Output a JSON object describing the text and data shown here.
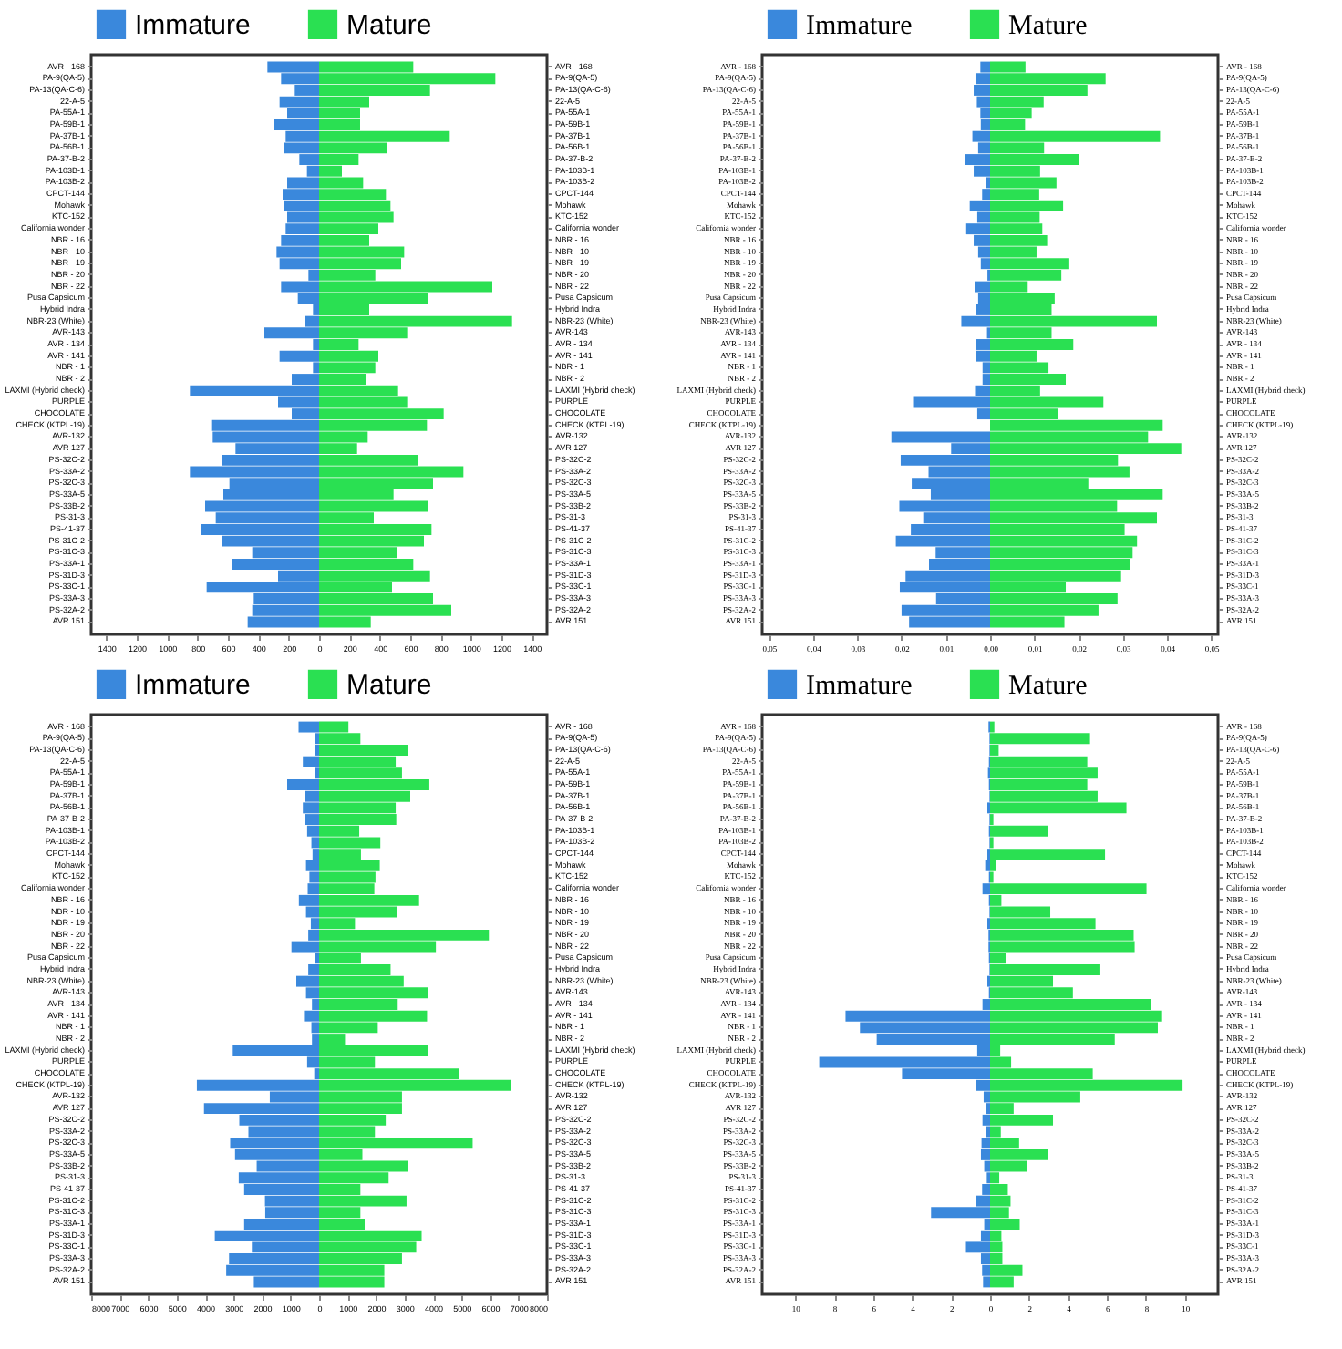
{
  "chart_data": [
    {
      "type": "bar",
      "orientation": "horizontal",
      "stacked": true,
      "legend": "top",
      "categories": [
        "AVR - 168",
        "PA-9(QA-5)",
        "PA-13(QA-C-6)",
        "22-A-5",
        "PA-55A-1",
        "PA-59B-1",
        "PA-37B-1",
        "PA-56B-1",
        "PA-37-B-2",
        "PA-103B-1",
        "PA-103B-2",
        "CPCT-144",
        "Mohawk",
        "KTC-152",
        "California wonder",
        "NBR - 16",
        "NBR - 10",
        "NBR - 19",
        "NBR - 20",
        "NBR - 22",
        "Pusa Capsicum",
        "Hybrid Indra",
        "NBR-23 (White)",
        "AVR-143",
        "AVR - 134",
        "AVR - 141",
        "NBR - 1",
        "NBR - 2",
        "LAXMI (Hybrid check)",
        "PURPLE",
        "CHOCOLATE",
        "CHECK (KTPL-19)",
        "AVR-132",
        "AVR 127",
        "PS-32C-2",
        "PS-33A-2",
        "PS-32C-3",
        "PS-33A-5",
        "PS-33B-2",
        "PS-31-3",
        "PS-41-37",
        "PS-31C-2",
        "PS-31C-3",
        "PS-33A-1",
        "PS-31D-3",
        "PS-33C-1",
        "PS-33A-3",
        "PS-32A-2",
        "AVR 151"
      ],
      "xlim": [
        -1500,
        1500
      ],
      "xticks": [
        {
          "value": -1400,
          "label": "1400"
        },
        {
          "value": -1200,
          "label": "1200"
        },
        {
          "value": -1000,
          "label": "1000"
        },
        {
          "value": -800,
          "label": "800"
        },
        {
          "value": -600,
          "label": "600"
        },
        {
          "value": -400,
          "label": "400"
        },
        {
          "value": -200,
          "label": "200"
        },
        0,
        200,
        400,
        600,
        800,
        1000,
        1200,
        1400
      ],
      "series": [
        {
          "name": "Immature",
          "color": "#3a88dc",
          "values": [
            -340,
            -250,
            -160,
            -260,
            -210,
            -300,
            -220,
            -230,
            -130,
            -80,
            -210,
            -240,
            -230,
            -210,
            -220,
            -250,
            -280,
            -260,
            -70,
            -250,
            -140,
            -40,
            -90,
            -360,
            -40,
            -260,
            -40,
            -180,
            -850,
            -270,
            -180,
            -710,
            -700,
            -550,
            -640,
            -850,
            -590,
            -630,
            -750,
            -680,
            -780,
            -640,
            -440,
            -570,
            -270,
            -740,
            -430,
            -440,
            -470
          ]
        },
        {
          "name": "Mature",
          "color": "#2ae052",
          "values": [
            620,
            1160,
            730,
            330,
            270,
            270,
            860,
            450,
            260,
            150,
            290,
            440,
            470,
            490,
            390,
            330,
            560,
            540,
            370,
            1140,
            720,
            330,
            1270,
            580,
            260,
            390,
            370,
            310,
            520,
            580,
            820,
            710,
            320,
            250,
            650,
            950,
            750,
            490,
            720,
            360,
            740,
            690,
            510,
            620,
            730,
            480,
            750,
            870,
            340
          ]
        }
      ]
    },
    {
      "type": "bar",
      "orientation": "horizontal",
      "stacked": true,
      "legend": "top",
      "categories": [
        "AVR - 168",
        "PA-9(QA-5)",
        "PA-13(QA-C-6)",
        "22-A-5",
        "PA-55A-1",
        "PA-59B-1",
        "PA-37B-1",
        "PA-56B-1",
        "PA-37-B-2",
        "PA-103B-1",
        "PA-103B-2",
        "CPCT-144",
        "Mohawk",
        "KTC-152",
        "California wonder",
        "NBR - 16",
        "NBR - 10",
        "NBR - 19",
        "NBR - 20",
        "NBR - 22",
        "Pusa Capsicum",
        "Hybrid Indra",
        "NBR-23 (White)",
        "AVR-143",
        "AVR - 134",
        "AVR - 141",
        "NBR - 1",
        "NBR - 2",
        "LAXMI (Hybrid check)",
        "PURPLE",
        "CHOCOLATE",
        "CHECK (KTPL-19)",
        "AVR-132",
        "AVR 127",
        "PS-32C-2",
        "PS-33A-2",
        "PS-32C-3",
        "PS-33A-5",
        "PS-33B-2",
        "PS-31-3",
        "PS-41-37",
        "PS-31C-2",
        "PS-31C-3",
        "PS-33A-1",
        "PS-31D-3",
        "PS-33C-1",
        "PS-33A-3",
        "PS-32A-2",
        "AVR 151"
      ],
      "xlim": [
        -0.0515,
        0.0515
      ],
      "xticks": [
        {
          "value": -0.05,
          "label": "0.05"
        },
        {
          "value": -0.04,
          "label": "0.04"
        },
        {
          "value": -0.03,
          "label": "0.03"
        },
        {
          "value": -0.02,
          "label": "0.02"
        },
        {
          "value": -0.01,
          "label": "0.01"
        },
        {
          "value": 0,
          "label": "0.00"
        },
        0.01,
        0.02,
        0.03,
        0.04,
        0.05
      ],
      "series": [
        {
          "name": "Immature",
          "color": "#3a88dc",
          "values": [
            -0.0022,
            -0.0033,
            -0.0037,
            -0.003,
            -0.0022,
            -0.0021,
            -0.004,
            -0.0027,
            -0.0057,
            -0.0037,
            -0.001,
            -0.0018,
            -0.0046,
            -0.0029,
            -0.0054,
            -0.0037,
            -0.0027,
            -0.0021,
            -0.0006,
            -0.0035,
            -0.0027,
            -0.0032,
            -0.0065,
            -0.0007,
            -0.0032,
            -0.0032,
            -0.0017,
            -0.0017,
            -0.0034,
            -0.0174,
            -0.0029,
            0,
            -0.0223,
            -0.0088,
            -0.0202,
            -0.0139,
            -0.0177,
            -0.0134,
            -0.0205,
            -0.0151,
            -0.0179,
            -0.0213,
            -0.0123,
            -0.0138,
            -0.0191,
            -0.0204,
            -0.0122,
            -0.02,
            -0.0183
          ]
        },
        {
          "name": "Mature",
          "color": "#2ae052",
          "values": [
            0.008,
            0.0261,
            0.022,
            0.0121,
            0.0094,
            0.0079,
            0.0384,
            0.0122,
            0.02,
            0.0113,
            0.015,
            0.0111,
            0.0165,
            0.0112,
            0.0118,
            0.0129,
            0.0105,
            0.0179,
            0.0161,
            0.0085,
            0.0146,
            0.0139,
            0.0377,
            0.0139,
            0.0188,
            0.0105,
            0.0132,
            0.0171,
            0.0113,
            0.0256,
            0.0154,
            0.039,
            0.0357,
            0.0432,
            0.0289,
            0.0315,
            0.0222,
            0.039,
            0.0287,
            0.0377,
            0.0304,
            0.0332,
            0.0322,
            0.0317,
            0.0296,
            0.0171,
            0.0288,
            0.0245,
            0.0168
          ]
        }
      ]
    },
    {
      "type": "bar",
      "orientation": "horizontal",
      "stacked": true,
      "legend": "top",
      "categories": [
        "AVR - 168",
        "PA-9(QA-5)",
        "PA-13(QA-C-6)",
        "22-A-5",
        "PA-55A-1",
        "PA-59B-1",
        "PA-37B-1",
        "PA-56B-1",
        "PA-37-B-2",
        "PA-103B-1",
        "PA-103B-2",
        "CPCT-144",
        "Mohawk",
        "KTC-152",
        "California wonder",
        "NBR - 16",
        "NBR - 10",
        "NBR - 19",
        "NBR - 20",
        "NBR - 22",
        "Pusa Capsicum",
        "Hybrid Indra",
        "NBR-23 (White)",
        "AVR-143",
        "AVR - 134",
        "AVR - 141",
        "NBR - 1",
        "NBR - 2",
        "LAXMI (Hybrid check)",
        "PURPLE",
        "CHOCOLATE",
        "CHECK (KTPL-19)",
        "AVR-132",
        "AVR 127",
        "PS-32C-2",
        "PS-33A-2",
        "PS-32C-3",
        "PS-33A-5",
        "PS-33B-2",
        "PS-31-3",
        "PS-41-37",
        "PS-31C-2",
        "PS-31C-3",
        "PS-33A-1",
        "PS-31D-3",
        "PS-33C-1",
        "PS-33A-3",
        "PS-32A-2",
        "AVR 151"
      ],
      "xlim": [
        -8000,
        8000
      ],
      "xticks": [
        {
          "value": -8000,
          "label": "8000"
        },
        {
          "value": -7000,
          "label": "7000"
        },
        {
          "value": -6000,
          "label": "6000"
        },
        {
          "value": -5000,
          "label": "5000"
        },
        {
          "value": -4000,
          "label": "4000"
        },
        {
          "value": -3000,
          "label": "3000"
        },
        {
          "value": -2000,
          "label": "2000"
        },
        {
          "value": -1000,
          "label": "1000"
        },
        0,
        1000,
        2000,
        3000,
        4000,
        5000,
        6000,
        7000,
        8000
      ],
      "series": [
        {
          "name": "Immature",
          "color": "#3a88dc",
          "values": [
            -720,
            -150,
            -150,
            -570,
            -150,
            -1120,
            -480,
            -570,
            -500,
            -420,
            -270,
            -230,
            -460,
            -340,
            -400,
            -710,
            -460,
            -290,
            -380,
            -970,
            -150,
            -380,
            -800,
            -460,
            -250,
            -530,
            -270,
            -250,
            -3030,
            -420,
            -170,
            -4290,
            -1730,
            -4040,
            -2800,
            -2480,
            -3120,
            -2950,
            -2190,
            -2820,
            -2630,
            -1900,
            -1890,
            -2630,
            -3660,
            -2360,
            -3160,
            -3260,
            -2290
          ]
        },
        {
          "name": "Mature",
          "color": "#2ae052",
          "values": [
            1030,
            1450,
            3120,
            2690,
            2910,
            3870,
            3200,
            2690,
            2710,
            1410,
            2150,
            1470,
            2130,
            1980,
            1940,
            3510,
            2720,
            1260,
            5960,
            4100,
            1470,
            2510,
            2970,
            3810,
            2760,
            3790,
            2060,
            910,
            3830,
            1960,
            4900,
            6740,
            2910,
            2910,
            2340,
            1960,
            5390,
            1520,
            3110,
            2440,
            1450,
            3070,
            1450,
            1600,
            3600,
            3410,
            2910,
            2290,
            2290
          ]
        }
      ]
    },
    {
      "type": "bar",
      "orientation": "horizontal",
      "legend": "top",
      "categories": [
        "AVR - 168",
        "PA-9(QA-5)",
        "PA-13(QA-C-6)",
        "22-A-5",
        "PA-55A-1",
        "PA-59B-1",
        "PA-37B-1",
        "PA-56B-1",
        "PA-37-B-2",
        "PA-103B-1",
        "PA-103B-2",
        "CPCT-144",
        "Mohawk",
        "KTC-152",
        "California wonder",
        "NBR - 16",
        "NBR - 10",
        "NBR - 19",
        "NBR - 20",
        "NBR - 22",
        "Pusa Capsicum",
        "Hybrid Indra",
        "NBR-23 (White)",
        "AVR-143",
        "AVR - 134",
        "AVR - 141",
        "NBR - 1",
        "NBR - 2",
        "LAXMI (Hybrid check)",
        "PURPLE",
        "CHOCOLATE",
        "CHECK (KTPL-19)",
        "AVR-132",
        "AVR 127",
        "PS-32C-2",
        "PS-33A-2",
        "PS-32C-3",
        "PS-33A-5",
        "PS-33B-2",
        "PS-31-3",
        "PS-41-37",
        "PS-31C-2",
        "PS-31C-3",
        "PS-33A-1",
        "PS-31D-3",
        "PS-33C-1",
        "PS-33A-3",
        "PS-32A-2",
        "AVR 151"
      ],
      "stacked": true,
      "xlim": [
        -11.7,
        11.7
      ],
      "xticks": [
        {
          "value": -10,
          "label": "10"
        },
        {
          "value": -8,
          "label": "8"
        },
        {
          "value": -6,
          "label": "6"
        },
        {
          "value": -4,
          "label": "4"
        },
        {
          "value": -2,
          "label": "2"
        },
        0,
        2,
        4,
        6,
        8,
        10
      ],
      "series": [
        {
          "name": "Immature",
          "color": "#3a88dc",
          "values": [
            -0.08,
            -0.03,
            -0.03,
            -0.06,
            -0.11,
            -0.06,
            -0.03,
            -0.14,
            -0.03,
            -0.06,
            -0.03,
            -0.14,
            -0.25,
            -0.06,
            -0.39,
            -0.06,
            -0.03,
            -0.14,
            -0.08,
            -0.08,
            -0.06,
            -0.03,
            -0.14,
            -0.06,
            -0.39,
            -7.42,
            -6.68,
            -5.82,
            -0.66,
            -8.77,
            -4.52,
            -0.72,
            -0.33,
            -0.22,
            -0.39,
            -0.22,
            -0.44,
            -0.47,
            -0.3,
            -0.17,
            -0.41,
            -0.74,
            -3.03,
            -0.3,
            -0.47,
            -1.24,
            -0.47,
            -0.41,
            -0.36
          ]
        },
        {
          "name": "Mature",
          "color": "#2ae052",
          "values": [
            0.22,
            5.13,
            0.44,
            4.99,
            5.52,
            4.99,
            5.52,
            7.0,
            0.17,
            2.98,
            0.17,
            5.9,
            0.3,
            0.17,
            8.03,
            0.58,
            3.09,
            5.41,
            7.37,
            7.42,
            0.83,
            5.66,
            3.23,
            4.25,
            8.25,
            8.83,
            8.61,
            6.4,
            0.52,
            1.08,
            5.27,
            9.88,
            4.63,
            1.21,
            3.23,
            0.55,
            1.49,
            2.95,
            1.88,
            0.47,
            0.91,
            1.05,
            0.97,
            1.52,
            0.58,
            0.63,
            0.63,
            1.66,
            1.21
          ]
        }
      ]
    }
  ]
}
